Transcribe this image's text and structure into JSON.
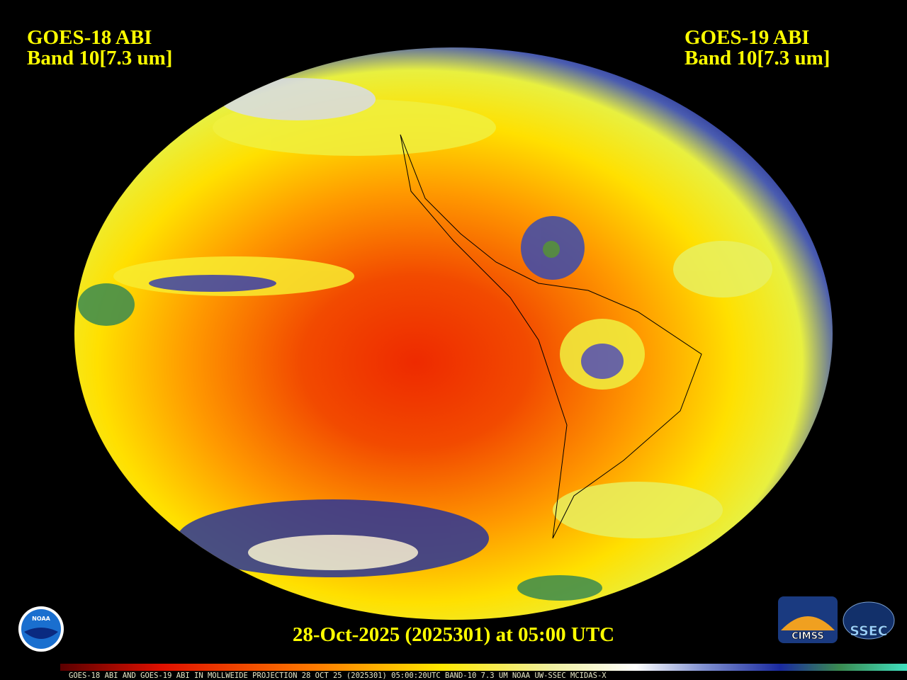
{
  "header": {
    "left_title": "GOES-18 ABI",
    "left_band": "Band 10[7.3 um]",
    "right_title": "GOES-19 ABI",
    "right_band": "Band 10[7.3 um]"
  },
  "footer": {
    "timestamp": "28-Oct-2025 (2025301) at 05:00 UTC",
    "caption": "GOES-18 ABI AND GOES-19 ABI IN MOLLWEIDE PROJECTION 28 OCT 25 (2025301) 05:00:20UTC BAND-10 7.3 UM NOAA UW-SSEC MCIDAS-X"
  },
  "logos": {
    "noaa": "NOAA",
    "cimss": "CIMSS",
    "ssec": "SSEC"
  }
}
